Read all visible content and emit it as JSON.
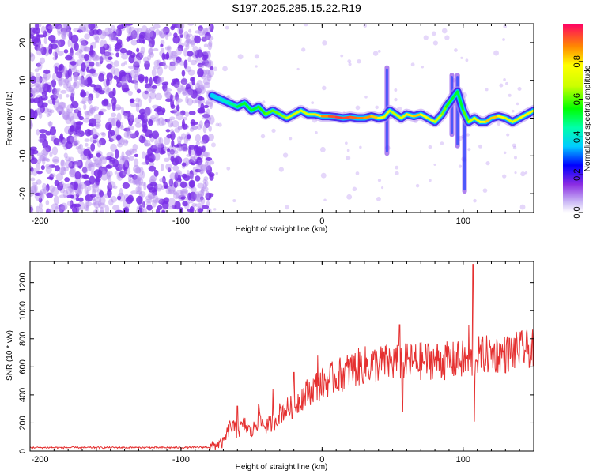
{
  "title": "S197.2025.285.15.22.R19",
  "colors": {
    "noise": "#7a2fe6",
    "noise_light": "#b48cf0",
    "snr_line": "#e53030",
    "frame": "#000000"
  },
  "chart_data": [
    {
      "type": "heatmap",
      "name": "spectrogram",
      "xlabel": "Height of straight line (km)",
      "ylabel": "Frequency (Hz)",
      "xlim": [
        -207,
        150
      ],
      "ylim": [
        -25,
        25
      ],
      "xticks": [
        -200,
        -100,
        0,
        100
      ],
      "xtick_labels": [
        "-200",
        "-100",
        "0",
        "100"
      ],
      "yticks": [
        -20,
        -10,
        0,
        10,
        20
      ],
      "ytick_labels": [
        "-20",
        "-10",
        "0",
        "10",
        "20"
      ],
      "noise_region_x": [
        -207,
        -78
      ],
      "ridge": {
        "x": [
          -78,
          -72,
          -66,
          -60,
          -55,
          -50,
          -45,
          -40,
          -35,
          -30,
          -25,
          -20,
          -15,
          -10,
          -5,
          0,
          5,
          10,
          15,
          20,
          25,
          30,
          35,
          40,
          44,
          48,
          52,
          56,
          60,
          65,
          70,
          75,
          80,
          85,
          88,
          92,
          96,
          100,
          104,
          108,
          112,
          116,
          120,
          125,
          130,
          135,
          140,
          145,
          150
        ],
        "y": [
          6,
          5,
          4,
          3,
          4,
          2,
          3,
          1,
          2,
          1,
          0,
          1,
          2,
          1,
          1,
          0.5,
          0.5,
          0.3,
          0,
          0.3,
          0,
          0,
          0.5,
          0,
          0.3,
          2,
          1,
          0,
          1,
          0.5,
          1,
          0,
          -1,
          1,
          3,
          5,
          7,
          2,
          -1,
          0,
          -1,
          -1,
          0,
          0.5,
          0,
          -1,
          0,
          1,
          2
        ],
        "amplitude": [
          0.35,
          0.4,
          0.45,
          0.5,
          0.55,
          0.5,
          0.55,
          0.6,
          0.6,
          0.62,
          0.65,
          0.7,
          0.7,
          0.72,
          0.75,
          0.85,
          0.9,
          0.95,
          0.95,
          0.92,
          0.9,
          0.88,
          0.85,
          0.8,
          0.75,
          0.7,
          0.65,
          0.7,
          0.75,
          0.85,
          0.8,
          0.75,
          0.7,
          0.65,
          0.6,
          0.55,
          0.5,
          0.55,
          0.65,
          0.7,
          0.75,
          0.8,
          0.85,
          0.8,
          0.75,
          0.7,
          0.75,
          0.8,
          0.7
        ]
      },
      "spikes": [
        {
          "x": 46,
          "y": [
            -10,
            14
          ]
        },
        {
          "x": 92,
          "y": [
            -5,
            12
          ]
        },
        {
          "x": 96,
          "y": [
            -8,
            12
          ]
        },
        {
          "x": 101,
          "y": [
            -20,
            0
          ]
        }
      ]
    },
    {
      "type": "colorbar",
      "name": "amplitude-colorbar",
      "label": "Normalized spectral amplitude",
      "range": [
        0,
        1
      ],
      "ticks": [
        0.0,
        0.2,
        0.4,
        0.6,
        0.8
      ],
      "tick_labels": [
        "0.0",
        "0.2",
        "0.4",
        "0.6",
        "0.8"
      ]
    },
    {
      "type": "line",
      "name": "snr",
      "xlabel": "Height of straight line (km)",
      "ylabel": "SNR (10 * v/v)",
      "xlim": [
        -207,
        150
      ],
      "ylim": [
        0,
        1350
      ],
      "xticks": [
        -200,
        -100,
        0,
        100
      ],
      "xtick_labels": [
        "-200",
        "-100",
        "0",
        "100"
      ],
      "yticks": [
        0,
        200,
        400,
        600,
        800,
        1000,
        1200
      ],
      "ytick_labels": [
        "0",
        "200",
        "400",
        "600",
        "800",
        "1000",
        "1200"
      ],
      "x": [
        -207,
        -150,
        -100,
        -80,
        -70,
        -65,
        -60,
        -55,
        -50,
        -45,
        -40,
        -35,
        -30,
        -25,
        -20,
        -15,
        -10,
        -5,
        0,
        10,
        20,
        30,
        40,
        50,
        55,
        60,
        70,
        80,
        90,
        100,
        105,
        108,
        110,
        120,
        130,
        140,
        150
      ],
      "y": [
        25,
        25,
        25,
        28,
        60,
        180,
        140,
        190,
        130,
        220,
        180,
        200,
        270,
        300,
        320,
        380,
        420,
        460,
        480,
        530,
        580,
        610,
        620,
        630,
        640,
        630,
        640,
        650,
        640,
        650,
        640,
        640,
        680,
        690,
        690,
        720,
        730
      ],
      "spikes": [
        {
          "x": -60,
          "y": 320
        },
        {
          "x": -45,
          "y": 330
        },
        {
          "x": -35,
          "y": 440
        },
        {
          "x": -20,
          "y": 560
        },
        {
          "x": -3,
          "y": 680
        },
        {
          "x": 55,
          "y": 900
        },
        {
          "x": 57,
          "y": 280
        },
        {
          "x": 96,
          "y": 760
        },
        {
          "x": 104,
          "y": 900
        },
        {
          "x": 107,
          "y": 1330
        },
        {
          "x": 108,
          "y": 210
        }
      ]
    }
  ]
}
